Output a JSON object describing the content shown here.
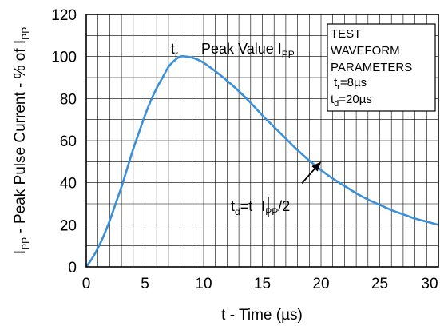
{
  "chart_data": {
    "type": "line",
    "xlabel": "t - Time (µs)",
    "ylabel_main": "I",
    "ylabel_sub": "PP",
    "ylabel_rest": " - Peak Pulse Current - % of I",
    "ylabel_sub2": "PP",
    "xlim": [
      0,
      30
    ],
    "ylim": [
      0,
      120
    ],
    "x_ticks": [
      0,
      5,
      10,
      15,
      20,
      25,
      30
    ],
    "y_ticks": [
      0,
      20,
      40,
      60,
      80,
      100,
      120
    ],
    "x_minor_step": 1,
    "y_minor_step": 10,
    "grid": true,
    "series": [
      {
        "color": "#3a8fd9",
        "x": [
          0,
          0.5,
          1,
          1.5,
          2,
          2.5,
          3,
          3.5,
          4,
          4.5,
          5,
          5.5,
          6,
          6.5,
          7,
          7.5,
          8,
          8.5,
          9,
          9.5,
          10,
          11,
          12,
          13,
          14,
          15,
          16,
          17,
          18,
          19,
          20,
          21,
          22,
          23,
          24,
          25,
          26,
          27,
          28,
          29,
          30
        ],
        "y": [
          0,
          4,
          9,
          15,
          22,
          30,
          38,
          47,
          56,
          64,
          72,
          79,
          85,
          90,
          95,
          98,
          100,
          100,
          99.5,
          98.5,
          97,
          93,
          88.5,
          83.5,
          78,
          72,
          66.5,
          61,
          55.5,
          50.5,
          46,
          42,
          38.5,
          35,
          32,
          29.5,
          27,
          25,
          23,
          21.5,
          20
        ]
      }
    ],
    "annotations": {
      "tr_main": "t",
      "tr_sub": "r",
      "peak_main": "Peak Value I",
      "peak_sub": "PP",
      "td_main": "t",
      "td_sub": "d",
      "td_mid": "=t ",
      "td_i": "I",
      "td_pp": "PP",
      "td_end": "/2",
      "arrow_point": [
        20,
        50
      ]
    },
    "legend_box": {
      "line1": "TEST",
      "line2": "WAVEFORM",
      "line3": "PARAMETERS",
      "line4_main": "t",
      "line4_sub": "r",
      "line4_rest": "=8µs",
      "line5_main": "t",
      "line5_sub": "d",
      "line5_rest": "=20µs"
    }
  }
}
